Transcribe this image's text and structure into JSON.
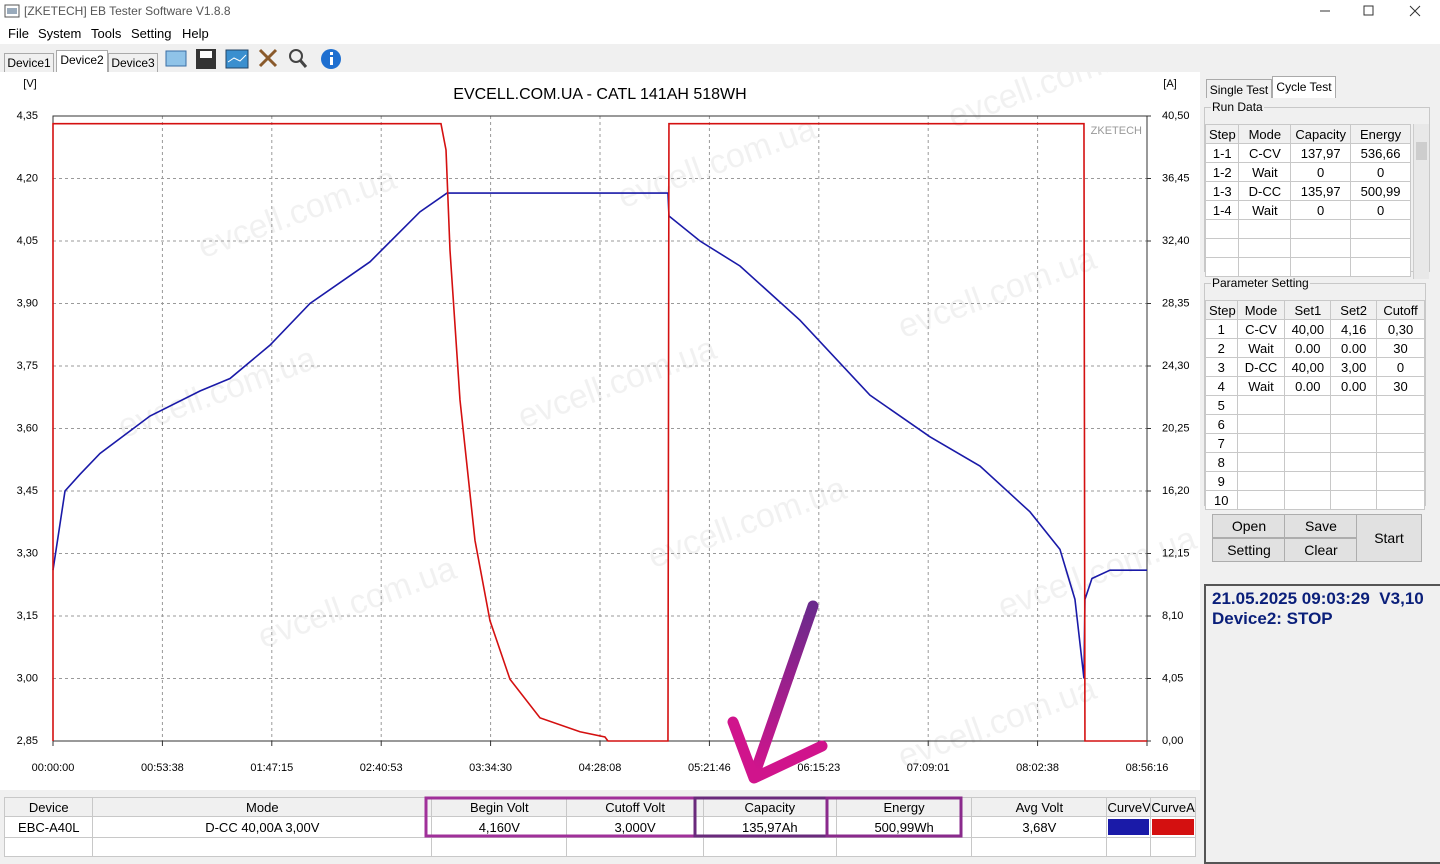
{
  "window": {
    "title": "[ZKETECH] EB Tester Software V1.8.8"
  },
  "menu": [
    "File",
    "System",
    "Tools",
    "Setting",
    "Help"
  ],
  "device_tabs": [
    "Device1",
    "Device2",
    "Device3"
  ],
  "watermark": "evcell.com.ua",
  "chart_data": {
    "type": "line",
    "title": "EVCELL.COM.UA - CATL 141AH 518WH",
    "brand": "ZKETECH",
    "ylabel": "[V]",
    "y2label": "[A]",
    "grid": true,
    "xlim": [
      0,
      32176
    ],
    "xticks": [
      {
        "value": 0,
        "label": "00:00:00"
      },
      {
        "value": 3218,
        "label": "00:53:38"
      },
      {
        "value": 6435,
        "label": "01:47:15"
      },
      {
        "value": 9653,
        "label": "02:40:53"
      },
      {
        "value": 12870,
        "label": "03:34:30"
      },
      {
        "value": 16088,
        "label": "04:28:08"
      },
      {
        "value": 19306,
        "label": "05:21:46"
      },
      {
        "value": 22523,
        "label": "06:15:23"
      },
      {
        "value": 25741,
        "label": "07:09:01"
      },
      {
        "value": 28958,
        "label": "08:02:38"
      },
      {
        "value": 32176,
        "label": "08:56:16"
      }
    ],
    "ylim": [
      2.85,
      4.35
    ],
    "yticks": [
      {
        "value": 2.85,
        "label": "2,85"
      },
      {
        "value": 3.0,
        "label": "3,00"
      },
      {
        "value": 3.15,
        "label": "3,15"
      },
      {
        "value": 3.3,
        "label": "3,30"
      },
      {
        "value": 3.45,
        "label": "3,45"
      },
      {
        "value": 3.6,
        "label": "3,60"
      },
      {
        "value": 3.75,
        "label": "3,75"
      },
      {
        "value": 3.9,
        "label": "3,90"
      },
      {
        "value": 4.05,
        "label": "4,05"
      },
      {
        "value": 4.2,
        "label": "4,20"
      },
      {
        "value": 4.35,
        "label": "4,35"
      }
    ],
    "y2lim": [
      0,
      40.5
    ],
    "y2ticks": [
      {
        "value": 0,
        "label": "0,00"
      },
      {
        "value": 4.05,
        "label": "4,05"
      },
      {
        "value": 8.1,
        "label": "8,10"
      },
      {
        "value": 12.15,
        "label": "12,15"
      },
      {
        "value": 16.2,
        "label": "16,20"
      },
      {
        "value": 20.25,
        "label": "20,25"
      },
      {
        "value": 24.3,
        "label": "24,30"
      },
      {
        "value": 28.35,
        "label": "28,35"
      },
      {
        "value": 32.4,
        "label": "32,40"
      },
      {
        "value": 36.45,
        "label": "36,45"
      },
      {
        "value": 40.5,
        "label": "40,50"
      }
    ],
    "series": [
      {
        "name": "CurveV",
        "color": "#1a1aa8",
        "x": [
          0,
          353,
          794,
          1382,
          2853,
          4323,
          5206,
          6382,
          7558,
          9323,
          10793,
          11588,
          18087,
          18116,
          19028,
          20205,
          21969,
          24028,
          25793,
          27263,
          28734,
          29616,
          30057,
          30322,
          30351,
          30557,
          31087,
          32176
        ],
        "values": [
          3.26,
          3.45,
          3.49,
          3.54,
          3.63,
          3.69,
          3.72,
          3.8,
          3.9,
          4.0,
          4.12,
          4.165,
          4.165,
          4.11,
          4.05,
          3.99,
          3.86,
          3.68,
          3.58,
          3.51,
          3.4,
          3.31,
          3.19,
          3.0,
          3.19,
          3.24,
          3.26,
          3.26
        ]
      },
      {
        "name": "CurveA",
        "color": "#d41010",
        "axis": "y2",
        "x": [
          0,
          0,
          11411,
          11559,
          11676,
          11970,
          12411,
          12852,
          13440,
          14323,
          15499,
          16234,
          16322,
          18087,
          18116,
          30322,
          30351,
          32176
        ],
        "values": [
          0,
          40,
          40,
          38.3,
          31.8,
          22.1,
          13.0,
          7.8,
          4.0,
          1.5,
          0.6,
          0.26,
          0,
          0,
          40,
          40,
          0,
          0
        ]
      }
    ]
  },
  "right_panel": {
    "tabs": [
      "Single Test",
      "Cycle Test"
    ],
    "run_data": {
      "title": "Run Data",
      "columns": [
        "Step",
        "Mode",
        "Capacity",
        "Energy"
      ],
      "rows": [
        [
          "1-1",
          "C-CV",
          "137,97",
          "536,66"
        ],
        [
          "1-2",
          "Wait",
          "0",
          "0"
        ],
        [
          "1-3",
          "D-CC",
          "135,97",
          "500,99"
        ],
        [
          "1-4",
          "Wait",
          "0",
          "0"
        ]
      ]
    },
    "parameter_setting": {
      "title": "Parameter Setting",
      "columns": [
        "Step",
        "Mode",
        "Set1",
        "Set2",
        "Cutoff"
      ],
      "rows": [
        [
          "1",
          "C-CV",
          "40,00",
          "4,16",
          "0,30"
        ],
        [
          "2",
          "Wait",
          "0.00",
          "0.00",
          "30"
        ],
        [
          "3",
          "D-CC",
          "40,00",
          "3,00",
          "0"
        ],
        [
          "4",
          "Wait",
          "0.00",
          "0.00",
          "30"
        ],
        [
          "5"
        ],
        [
          "6"
        ],
        [
          "7"
        ],
        [
          "8"
        ],
        [
          "9"
        ],
        [
          "10"
        ]
      ]
    },
    "buttons": [
      "Open",
      "Save",
      "Setting",
      "Clear",
      "Start"
    ],
    "status": [
      "21.05.2025 09:03:29  V3,10",
      "Device2: STOP"
    ]
  },
  "result_table": {
    "columns": [
      "Device",
      "Mode",
      "Begin Volt",
      "Cutoff Volt",
      "Capacity",
      "Energy",
      "Avg Volt"
    ],
    "row": [
      "EBC-A40L",
      "D-CC  40,00A  3,00V",
      "4,160V",
      "3,000V",
      "135,97Ah",
      "500,99Wh",
      "3,68V"
    ]
  }
}
